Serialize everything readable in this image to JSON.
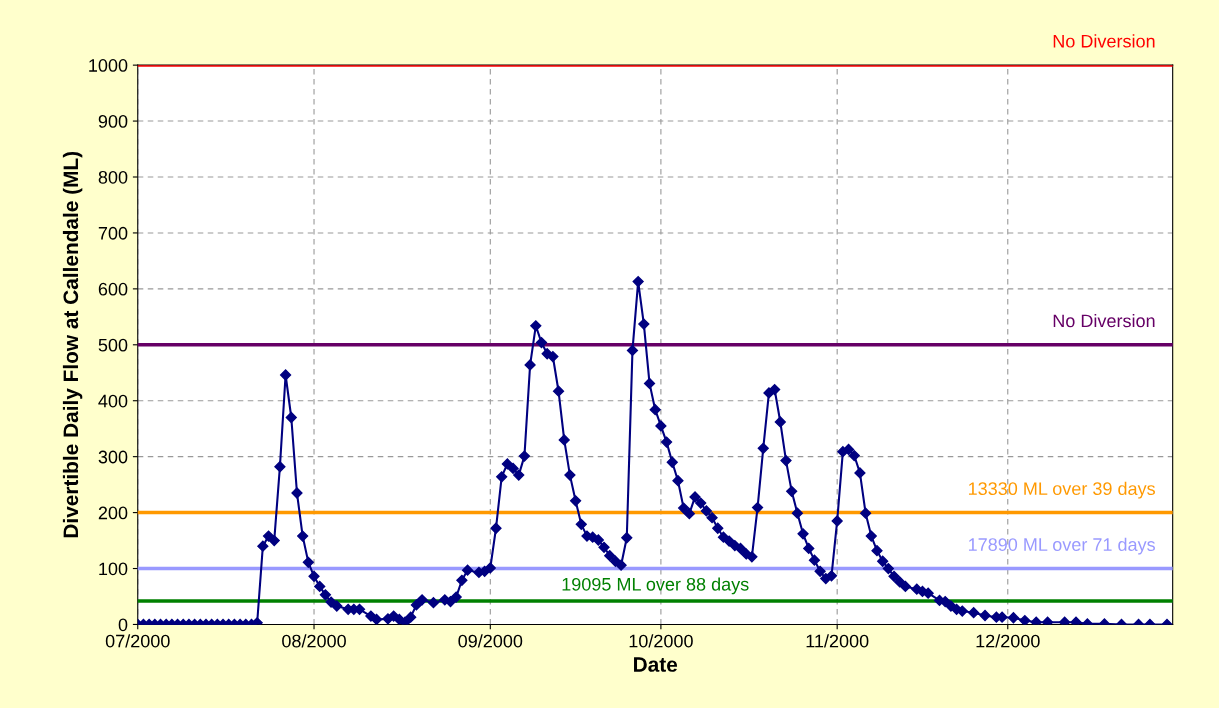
{
  "chart_data": {
    "type": "line",
    "xlabel": "Date",
    "ylabel": "Divertible Daily Flow at Callendale (ML)",
    "x": [
      "2000-07-01",
      "2000-07-02",
      "2000-07-03",
      "2000-07-04",
      "2000-07-05",
      "2000-07-06",
      "2000-07-07",
      "2000-07-08",
      "2000-07-09",
      "2000-07-10",
      "2000-07-11",
      "2000-07-12",
      "2000-07-13",
      "2000-07-14",
      "2000-07-15",
      "2000-07-16",
      "2000-07-17",
      "2000-07-18",
      "2000-07-19",
      "2000-07-20",
      "2000-07-21",
      "2000-07-22",
      "2000-07-23",
      "2000-07-24",
      "2000-07-25",
      "2000-07-26",
      "2000-07-27",
      "2000-07-28",
      "2000-07-29",
      "2000-07-30",
      "2000-07-31",
      "2000-08-01",
      "2000-08-02",
      "2000-08-03",
      "2000-08-04",
      "2000-08-05",
      "2000-08-07",
      "2000-08-08",
      "2000-08-09",
      "2000-08-11",
      "2000-08-12",
      "2000-08-14",
      "2000-08-15",
      "2000-08-16",
      "2000-08-17",
      "2000-08-18",
      "2000-08-19",
      "2000-08-20",
      "2000-08-22",
      "2000-08-24",
      "2000-08-25",
      "2000-08-26",
      "2000-08-27",
      "2000-08-28",
      "2000-08-30",
      "2000-08-31",
      "2000-09-01",
      "2000-09-02",
      "2000-09-03",
      "2000-09-04",
      "2000-09-05",
      "2000-09-06",
      "2000-09-07",
      "2000-09-08",
      "2000-09-09",
      "2000-09-10",
      "2000-09-11",
      "2000-09-12",
      "2000-09-13",
      "2000-09-14",
      "2000-09-15",
      "2000-09-16",
      "2000-09-17",
      "2000-09-18",
      "2000-09-19",
      "2000-09-20",
      "2000-09-21",
      "2000-09-22",
      "2000-09-23",
      "2000-09-24",
      "2000-09-25",
      "2000-09-26",
      "2000-09-27",
      "2000-09-28",
      "2000-09-29",
      "2000-09-30",
      "2000-10-01",
      "2000-10-02",
      "2000-10-03",
      "2000-10-04",
      "2000-10-05",
      "2000-10-06",
      "2000-10-07",
      "2000-10-08",
      "2000-10-09",
      "2000-10-10",
      "2000-10-11",
      "2000-10-12",
      "2000-10-13",
      "2000-10-14",
      "2000-10-15",
      "2000-10-16",
      "2000-10-17",
      "2000-10-18",
      "2000-10-19",
      "2000-10-20",
      "2000-10-21",
      "2000-10-22",
      "2000-10-23",
      "2000-10-24",
      "2000-10-25",
      "2000-10-26",
      "2000-10-27",
      "2000-10-28",
      "2000-10-29",
      "2000-10-30",
      "2000-10-31",
      "2000-11-01",
      "2000-11-02",
      "2000-11-03",
      "2000-11-04",
      "2000-11-05",
      "2000-11-06",
      "2000-11-07",
      "2000-11-08",
      "2000-11-09",
      "2000-11-10",
      "2000-11-11",
      "2000-11-12",
      "2000-11-13",
      "2000-11-15",
      "2000-11-16",
      "2000-11-17",
      "2000-11-19",
      "2000-11-20",
      "2000-11-21",
      "2000-11-22",
      "2000-11-23",
      "2000-11-25",
      "2000-11-27",
      "2000-11-29",
      "2000-11-30",
      "2000-12-02",
      "2000-12-04",
      "2000-12-06",
      "2000-12-08",
      "2000-12-11",
      "2000-12-13",
      "2000-12-15",
      "2000-12-18",
      "2000-12-21",
      "2000-12-24",
      "2000-12-26",
      "2000-12-29"
    ],
    "series": [
      {
        "color": "#000080",
        "values": [
          0,
          0,
          0,
          0,
          0,
          0,
          0,
          0,
          0,
          0,
          0,
          0,
          0,
          0,
          0,
          0,
          0,
          0,
          0,
          0,
          0,
          3,
          140,
          158,
          150,
          282,
          446,
          370,
          235,
          158,
          111,
          86,
          68,
          53,
          40,
          33,
          27,
          27,
          27,
          15,
          9,
          10,
          15,
          9,
          4,
          13,
          35,
          44,
          39,
          44,
          41,
          49,
          79,
          97,
          93,
          95,
          101,
          172,
          264,
          287,
          279,
          267,
          301,
          464,
          534,
          504,
          484,
          479,
          417,
          330,
          267,
          221,
          179,
          158,
          156,
          151,
          138,
          123,
          113,
          106,
          155,
          490,
          613,
          537,
          431,
          384,
          355,
          326,
          290,
          257,
          208,
          198,
          228,
          217,
          203,
          191,
          172,
          156,
          149,
          141,
          136,
          126,
          121,
          209,
          315,
          414,
          420,
          362,
          293,
          238,
          199,
          162,
          136,
          115,
          95,
          82,
          87,
          185,
          309,
          313,
          302,
          271,
          199,
          158,
          132,
          113,
          100,
          86,
          76,
          68,
          63,
          59,
          56,
          43,
          41,
          33,
          27,
          24,
          21,
          16,
          13,
          13,
          12,
          7,
          4,
          4,
          4,
          4,
          1,
          1,
          0,
          0,
          0,
          0
        ]
      }
    ],
    "xlim": [
      "2000-07-01",
      "2000-12-30"
    ],
    "xticks": [
      {
        "value": "2000-07-01",
        "label": "07/2000"
      },
      {
        "value": "2000-08-01",
        "label": "08/2000"
      },
      {
        "value": "2000-09-01",
        "label": "09/2000"
      },
      {
        "value": "2000-10-01",
        "label": "10/2000"
      },
      {
        "value": "2000-11-01",
        "label": "11/2000"
      },
      {
        "value": "2000-12-01",
        "label": "12/2000"
      }
    ],
    "ylim": [
      0,
      1000
    ],
    "yticks": [
      0,
      100,
      200,
      300,
      400,
      500,
      600,
      700,
      800,
      900,
      1000
    ],
    "ref_lines": [
      {
        "axis": "y",
        "value": 1000,
        "label": "No Diversion",
        "color": "#ff0000"
      },
      {
        "axis": "y",
        "value": 500,
        "label": "No Diversion",
        "color": "#660066"
      },
      {
        "axis": "y",
        "value": 200,
        "label": "13330 ML over 39 days",
        "color": "#ff9900"
      },
      {
        "axis": "y",
        "value": 100,
        "label": "17890 ML over 71 days",
        "color": "#9999ff"
      },
      {
        "axis": "y",
        "value": 42,
        "label": "19095 ML over 88 days",
        "color": "#008000"
      }
    ],
    "grid": true,
    "legend": false,
    "marker": "diamond",
    "line_style": "solid"
  }
}
